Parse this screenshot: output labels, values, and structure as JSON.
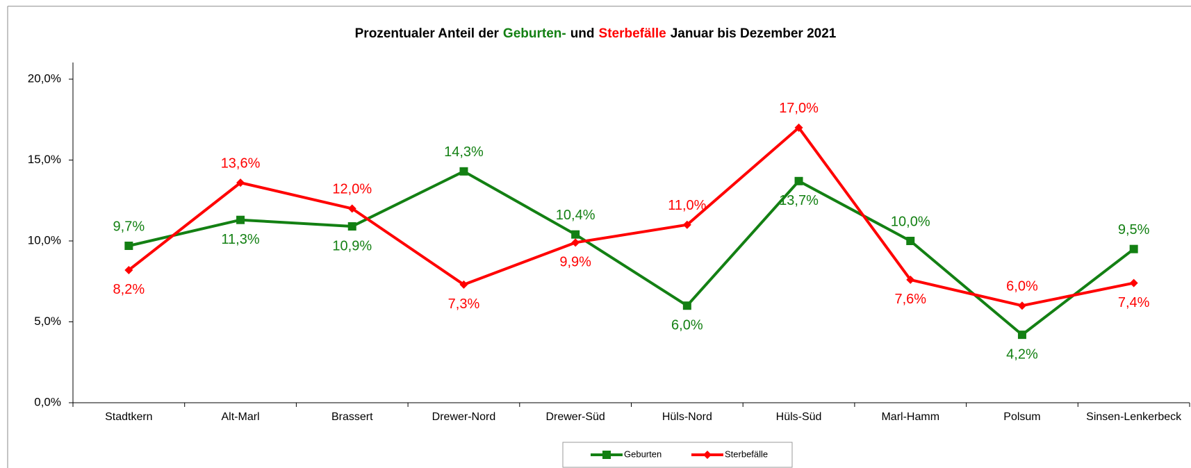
{
  "chart_data": {
    "type": "line",
    "title": [
      "Prozentualer Anteil der",
      "Geburten-",
      "und",
      "Sterbefälle",
      "Januar bis Dezember 2021"
    ],
    "categories": [
      "Stadtkern",
      "Alt-Marl",
      "Brassert",
      "Drewer-Nord",
      "Drewer-Süd",
      "Hüls-Nord",
      "Hüls-Süd",
      "Marl-Hamm",
      "Polsum",
      "Sinsen-Lenkerbeck"
    ],
    "series": [
      {
        "name": "Geburten",
        "color": "#138013",
        "marker": "square",
        "values": [
          9.7,
          11.3,
          10.9,
          14.3,
          10.4,
          6.0,
          13.7,
          10.0,
          4.2,
          9.5
        ],
        "value_labels": [
          "9,7%",
          "11,3%",
          "10,9%",
          "14,3%",
          "10,4%",
          "6,0%",
          "13,7%",
          "10,0%",
          "4,2%",
          "9,5%"
        ]
      },
      {
        "name": "Sterbefälle",
        "color": "#ff0000",
        "marker": "diamond",
        "values": [
          8.2,
          13.6,
          12.0,
          7.3,
          9.9,
          11.0,
          17.0,
          7.6,
          6.0,
          7.4
        ],
        "value_labels": [
          "8,2%",
          "13,6%",
          "12,0%",
          "7,3%",
          "9,9%",
          "11,0%",
          "17,0%",
          "7,6%",
          "6,0%",
          "7,4%"
        ]
      }
    ],
    "ylim": [
      0,
      20
    ],
    "yticks": [
      {
        "value": 0,
        "label": "0,0%"
      },
      {
        "value": 5,
        "label": "5,0%"
      },
      {
        "value": 10,
        "label": "10,0%"
      },
      {
        "value": 15,
        "label": "15,0%"
      },
      {
        "value": 20,
        "label": "20,0%"
      }
    ],
    "legend": "bottom"
  }
}
